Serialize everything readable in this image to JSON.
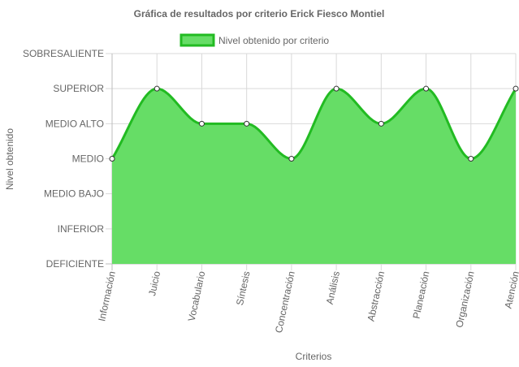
{
  "chart_data": {
    "type": "area",
    "title": "Gráfica de resultados por criterio Erick Fiesco Montiel",
    "xlabel": "Criterios",
    "ylabel": "Nivel obtenido",
    "y_levels": [
      "DEFICIENTE",
      "INFERIOR",
      "MEDIO BAJO",
      "MEDIO",
      "MEDIO ALTO",
      "SUPERIOR",
      "SOBRESALIENTE"
    ],
    "categories": [
      "Información",
      "Juicio",
      "Vocabulario",
      "Síntesis",
      "Concentración",
      "Análisis",
      "Abstracción",
      "Planeación",
      "Organización",
      "Atención"
    ],
    "series": [
      {
        "name": "Nivel obtenido por criterio",
        "values": [
          "MEDIO",
          "SUPERIOR",
          "MEDIO ALTO",
          "MEDIO ALTO",
          "MEDIO",
          "SUPERIOR",
          "MEDIO ALTO",
          "SUPERIOR",
          "MEDIO",
          "SUPERIOR"
        ],
        "fill_color": "#66dd66",
        "line_color": "#22bb22"
      }
    ],
    "legend": "top-center",
    "grid": true
  }
}
